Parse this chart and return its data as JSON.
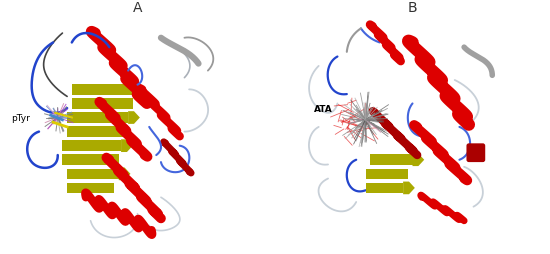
{
  "panel_A_label": "A",
  "panel_B_label": "B",
  "pTyr_label": "pTyr",
  "ATA_label": "ATA",
  "background_color": "#ffffff",
  "fig_width": 5.5,
  "fig_height": 2.55,
  "dpi": 100,
  "panel_label_fontsize": 10,
  "molecule_label_fontsize": 6.5,
  "colors": {
    "red_helix": "#dd0000",
    "dark_red_helix": "#aa0000",
    "yellow_sheet": "#aaaa00",
    "blue_loop": "#2244cc",
    "blue_loop2": "#4466dd",
    "gray_loop": "#999999",
    "light_gray_loop": "#bbbbbb",
    "white_loop": "#c8d0d8",
    "silver_loop": "#aab0b8",
    "black_loop": "#444444",
    "ligand_gray": "#777777",
    "ligand_pink": "#cc88aa",
    "ligand_blue": "#6688cc",
    "ligand_purple": "#aa44cc",
    "yellow_stick": "#ddcc00",
    "blue_stick": "#4488cc"
  }
}
